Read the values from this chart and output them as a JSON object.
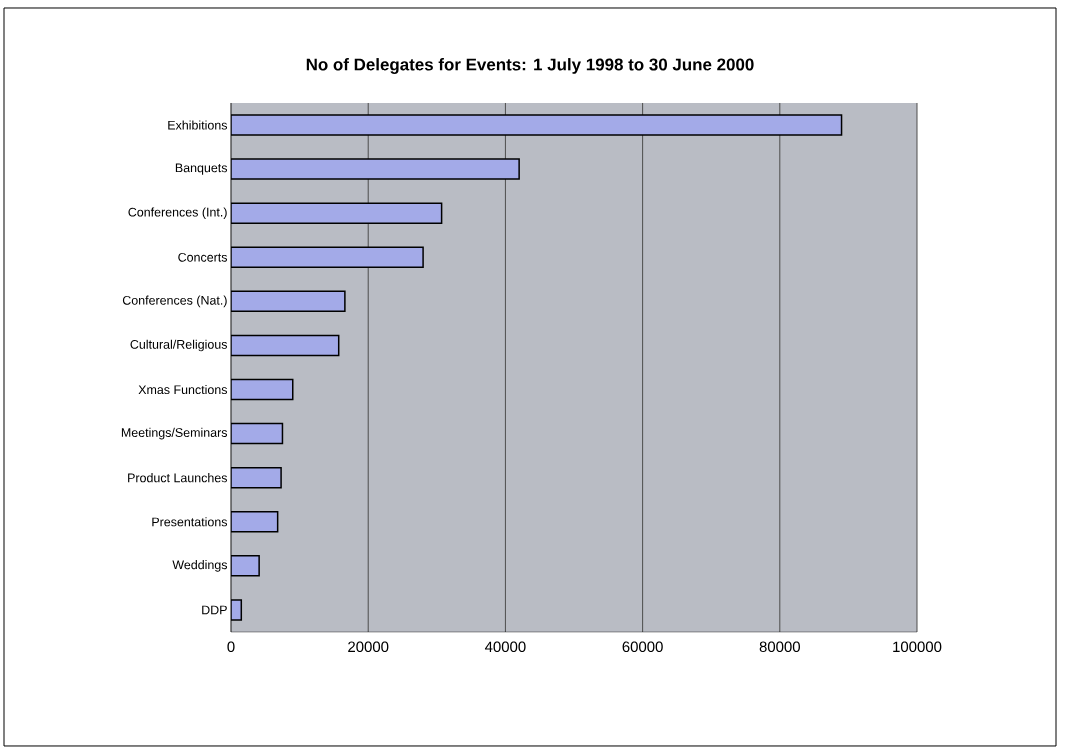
{
  "chart_data": {
    "type": "bar",
    "orientation": "horizontal",
    "title": "No of Delegates for Events: 1 July 1998 to 30 June 2000",
    "categories": [
      "Exhibitions",
      "Banquets",
      "Conferences (Int.)",
      "Concerts",
      "Conferences (Nat.)",
      "Cultural/Religious",
      "Xmas Functions",
      "Meetings/Seminars",
      "Product Launches",
      "Presentations",
      "Weddings",
      "DDP"
    ],
    "values": [
      89000,
      42000,
      30700,
      28000,
      16600,
      15700,
      9000,
      7500,
      7300,
      6800,
      4100,
      1500
    ],
    "color": "#a3aae8",
    "xlim": [
      0,
      100000
    ],
    "xticks": [
      0,
      20000,
      40000,
      60000,
      80000,
      100000
    ],
    "grid": "x"
  }
}
